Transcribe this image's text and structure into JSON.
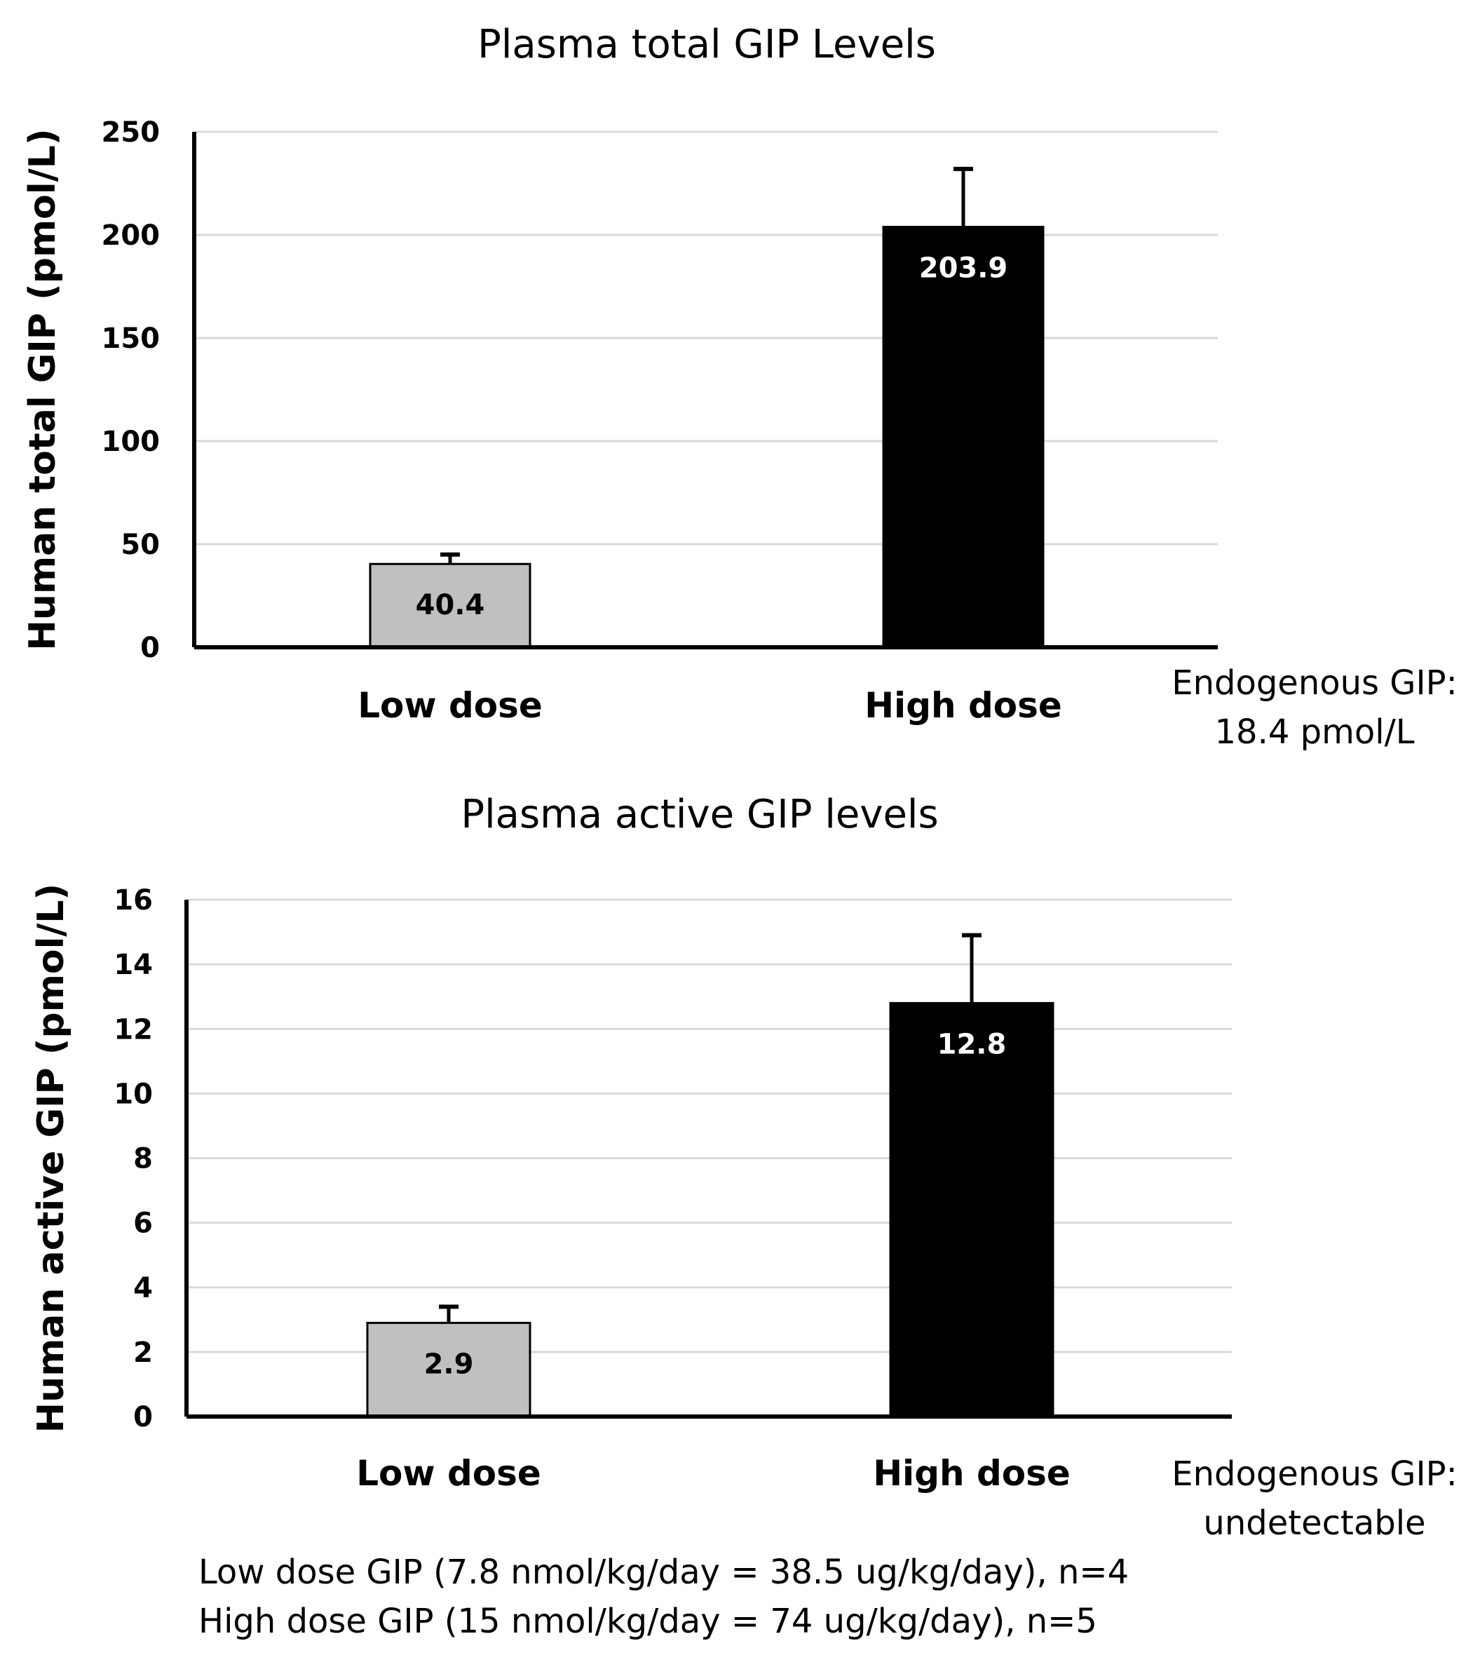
{
  "chart_data": [
    {
      "type": "bar",
      "title": "Plasma total GIP Levels",
      "xlabel": "",
      "ylabel": "Human total GIP (pmol/L)",
      "ylim": [
        0,
        250
      ],
      "yticks": [
        0,
        50,
        100,
        150,
        200,
        250
      ],
      "grid": true,
      "categories": [
        "Low dose",
        "High dose"
      ],
      "values": [
        40.4,
        203.9
      ],
      "value_labels": [
        "40.4",
        "203.9"
      ],
      "error_upper": [
        45,
        232
      ],
      "bar_colors": [
        "#c0c0c0",
        "#000000"
      ],
      "label_colors": [
        "#000000",
        "#ffffff"
      ],
      "annotation": [
        "Endogenous GIP:",
        "18.4 pmol/L"
      ]
    },
    {
      "type": "bar",
      "title": "Plasma active GIP levels",
      "xlabel": "",
      "ylabel": "Human active GIP (pmol/L)",
      "ylim": [
        0,
        16
      ],
      "yticks": [
        0,
        2,
        4,
        6,
        8,
        10,
        12,
        14,
        16
      ],
      "grid": true,
      "categories": [
        "Low dose",
        "High dose"
      ],
      "values": [
        2.9,
        12.8
      ],
      "value_labels": [
        "2.9",
        "12.8"
      ],
      "error_upper": [
        3.4,
        14.9
      ],
      "bar_colors": [
        "#c0c0c0",
        "#000000"
      ],
      "label_colors": [
        "#000000",
        "#ffffff"
      ],
      "annotation": [
        "Endogenous GIP:",
        "undetectable"
      ]
    }
  ],
  "footnote": [
    "Low dose GIP (7.8 nmol/kg/day = 38.5 ug/kg/day), n=4",
    "High dose GIP (15 nmol/kg/day = 74 ug/kg/day), n=5"
  ]
}
